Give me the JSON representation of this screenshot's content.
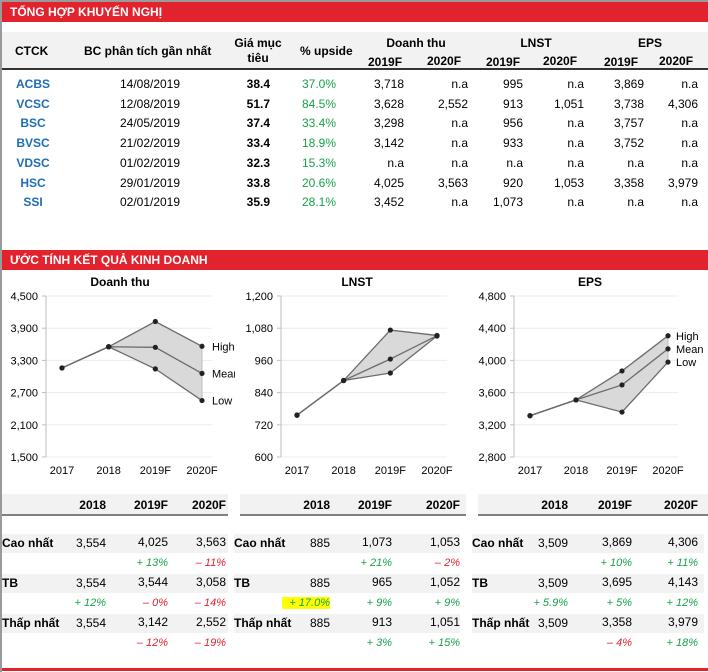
{
  "sections": {
    "recommendations_title": "TỔNG HỢP KHUYẾN NGHỊ",
    "estimates_title": "ƯỚC TÍNH KẾT QUẢ KINH DOANH"
  },
  "rec_table": {
    "headers": {
      "ctck": "CTCK",
      "report": "BC phân tích gần nhất",
      "target_line1": "Giá mục",
      "target_line2": "tiêu",
      "upside": "% upside",
      "revenue": "Doanh thu",
      "profit": "LNST",
      "eps": "EPS",
      "y2019": "2019F",
      "y2020": "2020F"
    },
    "rows": [
      {
        "ctck": "ACBS",
        "date": "14/08/2019",
        "target": "38.4",
        "upside": "37.0%",
        "rev19": "3,718",
        "rev20": "n.a",
        "np19": "995",
        "np20": "n.a",
        "eps19": "3,869",
        "eps20": "n.a"
      },
      {
        "ctck": "VCSC",
        "date": "12/08/2019",
        "target": "51.7",
        "upside": "84.5%",
        "rev19": "3,628",
        "rev20": "2,552",
        "np19": "913",
        "np20": "1,051",
        "eps19": "3,738",
        "eps20": "4,306"
      },
      {
        "ctck": "BSC",
        "date": "24/05/2019",
        "target": "37.4",
        "upside": "33.4%",
        "rev19": "3,298",
        "rev20": "n.a",
        "np19": "956",
        "np20": "n.a",
        "eps19": "3,757",
        "eps20": "n.a"
      },
      {
        "ctck": "BVSC",
        "date": "21/02/2019",
        "target": "33.4",
        "upside": "18.9%",
        "rev19": "3,142",
        "rev20": "n.a",
        "np19": "933",
        "np20": "n.a",
        "eps19": "3,752",
        "eps20": "n.a"
      },
      {
        "ctck": "VDSC",
        "date": "01/02/2019",
        "target": "32.3",
        "upside": "15.3%",
        "rev19": "n.a",
        "rev20": "n.a",
        "np19": "n.a",
        "np20": "n.a",
        "eps19": "n.a",
        "eps20": "n.a"
      },
      {
        "ctck": "HSC",
        "date": "29/01/2019",
        "target": "33.8",
        "upside": "20.6%",
        "rev19": "4,025",
        "rev20": "3,563",
        "np19": "920",
        "np20": "1,053",
        "eps19": "3,358",
        "eps20": "3,979"
      },
      {
        "ctck": "SSI",
        "date": "02/01/2019",
        "target": "35.9",
        "upside": "28.1%",
        "rev19": "3,452",
        "rev20": "n.a",
        "np19": "1,073",
        "np20": "n.a",
        "eps19": "n.a",
        "eps20": "n.a"
      }
    ]
  },
  "colors": {
    "accent": "#e2222d",
    "link": "#1f6db5",
    "positive": "#17a14a",
    "negative": "#e2222d",
    "highlight": "#ffff00",
    "band_fill": "#d9d9d9"
  },
  "chart_data": [
    {
      "type": "line",
      "title": "Doanh thu",
      "categories": [
        "2017",
        "2018",
        "2019F",
        "2020F"
      ],
      "ylim": [
        1500,
        4500
      ],
      "yticks": [
        "1,500",
        "2,100",
        "2,700",
        "3,300",
        "3,900",
        "4,500"
      ],
      "ytick_values": [
        1500,
        2100,
        2700,
        3300,
        3900,
        4500
      ],
      "series": [
        {
          "name": "High",
          "values": [
            3160,
            3554,
            4025,
            3563
          ]
        },
        {
          "name": "Mean",
          "values": [
            3160,
            3554,
            3544,
            3058
          ]
        },
        {
          "name": "Low",
          "values": [
            3160,
            3554,
            3142,
            2552
          ]
        }
      ],
      "legend": [
        "High",
        "Mean",
        "Low"
      ],
      "legend_placement": "right-inline"
    },
    {
      "type": "line",
      "title": "LNST",
      "categories": [
        "2017",
        "2018",
        "2019F",
        "2020F"
      ],
      "ylim": [
        600,
        1200
      ],
      "yticks": [
        "600",
        "720",
        "840",
        "960",
        "1,080",
        "1,200"
      ],
      "ytick_values": [
        600,
        720,
        840,
        960,
        1080,
        1200
      ],
      "series": [
        {
          "name": "High",
          "values": [
            756,
            885,
            1073,
            1053
          ]
        },
        {
          "name": "Mean",
          "values": [
            756,
            885,
            965,
            1052
          ]
        },
        {
          "name": "Low",
          "values": [
            756,
            885,
            913,
            1051
          ]
        }
      ],
      "legend": [],
      "legend_placement": "none"
    },
    {
      "type": "line",
      "title": "EPS",
      "categories": [
        "2017",
        "2018",
        "2019F",
        "2020F"
      ],
      "ylim": [
        2800,
        4800
      ],
      "yticks": [
        "2,800",
        "3,200",
        "3,600",
        "4,000",
        "4,400",
        "4,800"
      ],
      "ytick_values": [
        2800,
        3200,
        3600,
        4000,
        4400,
        4800
      ],
      "series": [
        {
          "name": "High",
          "values": [
            3313,
            3509,
            3869,
            4306
          ]
        },
        {
          "name": "Mean",
          "values": [
            3313,
            3509,
            3695,
            4143
          ]
        },
        {
          "name": "Low",
          "values": [
            3313,
            3509,
            3358,
            3979
          ]
        }
      ],
      "legend": [
        "High",
        "Mean",
        "Low"
      ],
      "legend_placement": "right-inline"
    }
  ],
  "summary_tables": [
    {
      "headers": [
        "2018",
        "2019F",
        "2020F"
      ],
      "rows": [
        {
          "label": "Cao nhất",
          "values": [
            "3,554",
            "4,025",
            "3,563"
          ],
          "changes": [
            "",
            "+ 13%",
            "– 11%"
          ],
          "change_signs": [
            "",
            "pos",
            "neg"
          ]
        },
        {
          "label": "TB",
          "values": [
            "3,554",
            "3,544",
            "3,058"
          ],
          "changes": [
            "+ 12%",
            "– 0%",
            "– 14%"
          ],
          "change_signs": [
            "pos",
            "neg",
            "neg"
          ]
        },
        {
          "label": "Thấp nhất",
          "values": [
            "3,554",
            "3,142",
            "2,552"
          ],
          "changes": [
            "",
            "– 12%",
            "– 19%"
          ],
          "change_signs": [
            "",
            "neg",
            "neg"
          ]
        }
      ]
    },
    {
      "headers": [
        "2018",
        "2019F",
        "2020F"
      ],
      "rows": [
        {
          "label": "Cao nhất",
          "values": [
            "885",
            "1,073",
            "1,053"
          ],
          "changes": [
            "",
            "+ 21%",
            "– 2%"
          ],
          "change_signs": [
            "",
            "pos",
            "neg"
          ]
        },
        {
          "label": "TB",
          "values": [
            "885",
            "965",
            "1,052"
          ],
          "changes": [
            "+ 17.0%",
            "+ 9%",
            "+ 9%"
          ],
          "change_signs": [
            "pos-hl",
            "pos",
            "pos"
          ]
        },
        {
          "label": "Thấp nhất",
          "values": [
            "885",
            "913",
            "1,051"
          ],
          "changes": [
            "",
            "+ 3%",
            "+ 15%"
          ],
          "change_signs": [
            "",
            "pos",
            "pos"
          ]
        }
      ]
    },
    {
      "headers": [
        "2018",
        "2019F",
        "2020F"
      ],
      "rows": [
        {
          "label": "Cao nhất",
          "values": [
            "3,509",
            "3,869",
            "4,306"
          ],
          "changes": [
            "",
            "+ 10%",
            "+ 11%"
          ],
          "change_signs": [
            "",
            "pos",
            "pos"
          ]
        },
        {
          "label": "TB",
          "values": [
            "3,509",
            "3,695",
            "4,143"
          ],
          "changes": [
            "+ 5.9%",
            "+ 5%",
            "+ 12%"
          ],
          "change_signs": [
            "pos",
            "pos",
            "pos"
          ]
        },
        {
          "label": "Thấp nhất",
          "values": [
            "3,509",
            "3,358",
            "3,979"
          ],
          "changes": [
            "",
            "– 4%",
            "+ 18%"
          ],
          "change_signs": [
            "",
            "neg",
            "pos"
          ]
        }
      ]
    }
  ]
}
